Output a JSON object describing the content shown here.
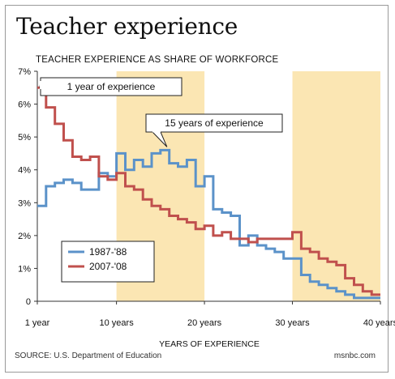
{
  "title": "Teacher experience",
  "chart_data": {
    "type": "line",
    "title": "TEACHER EXPERIENCE AS SHARE OF WORKFORCE",
    "xlabel": "YEARS OF EXPERIENCE",
    "ylabel": "",
    "xlim": [
      1,
      40
    ],
    "ylim": [
      0,
      7
    ],
    "x_ticks": [
      {
        "value": 1,
        "label": "1 year"
      },
      {
        "value": 10,
        "label": "10 years"
      },
      {
        "value": 20,
        "label": "20 years"
      },
      {
        "value": 30,
        "label": "30 years"
      },
      {
        "value": 40,
        "label": "40 years"
      }
    ],
    "y_ticks": [
      {
        "value": 0,
        "label": "0"
      },
      {
        "value": 1,
        "label": "1%"
      },
      {
        "value": 2,
        "label": "2%"
      },
      {
        "value": 3,
        "label": "3%"
      },
      {
        "value": 4,
        "label": "4%"
      },
      {
        "value": 5,
        "label": "5%"
      },
      {
        "value": 6,
        "label": "6%"
      },
      {
        "value": 7,
        "label": "7%"
      }
    ],
    "shaded_ranges": [
      [
        10,
        20
      ],
      [
        30,
        40
      ]
    ],
    "shade_color": "#fbe6b3",
    "series": [
      {
        "name": "1987-'88",
        "color": "#5b92c9",
        "values": [
          2.9,
          3.5,
          3.6,
          3.7,
          3.6,
          3.4,
          3.4,
          3.9,
          3.8,
          4.5,
          4.0,
          4.3,
          4.1,
          4.5,
          4.6,
          4.2,
          4.1,
          4.3,
          3.5,
          3.8,
          2.8,
          2.7,
          2.6,
          1.7,
          2.0,
          1.7,
          1.6,
          1.5,
          1.3,
          1.3,
          0.8,
          0.6,
          0.5,
          0.4,
          0.3,
          0.2,
          0.1,
          0.1,
          0.1
        ]
      },
      {
        "name": "2007-'08",
        "color": "#c0504d",
        "values": [
          6.5,
          5.9,
          5.4,
          4.9,
          4.4,
          4.3,
          4.4,
          3.8,
          3.7,
          3.9,
          3.5,
          3.4,
          3.1,
          2.9,
          2.8,
          2.6,
          2.5,
          2.4,
          2.2,
          2.3,
          2.0,
          2.1,
          1.9,
          1.9,
          1.8,
          1.9,
          1.9,
          1.9,
          1.9,
          2.1,
          1.6,
          1.5,
          1.3,
          1.2,
          1.1,
          0.7,
          0.5,
          0.3,
          0.2
        ]
      }
    ],
    "legend_position": "bottom-left",
    "annotations": [
      {
        "text": "1 year of experience",
        "x": 1,
        "y": 6.5
      },
      {
        "text": "15 years of experience",
        "x": 15,
        "y": 4.6
      }
    ],
    "grid": false
  },
  "footer": {
    "source": "SOURCE: U.S. Department of Education",
    "credit": "msnbc.com"
  }
}
